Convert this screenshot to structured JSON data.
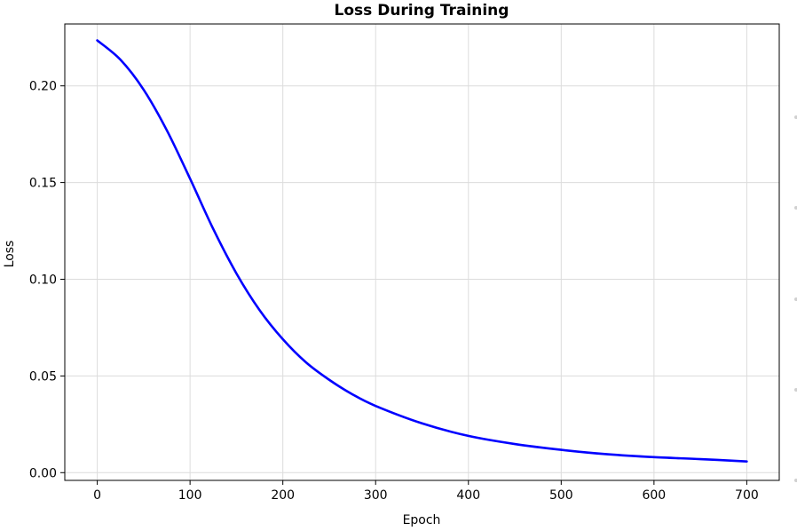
{
  "chart_data": {
    "type": "line",
    "title": "Loss During Training",
    "xlabel": "Epoch",
    "ylabel": "Loss",
    "xlim": [
      -35,
      735
    ],
    "ylim": [
      -0.004,
      0.232
    ],
    "xticks": [
      0,
      100,
      200,
      300,
      400,
      500,
      600,
      700
    ],
    "yticks": [
      0.0,
      0.05,
      0.1,
      0.15,
      0.2
    ],
    "xtick_labels": [
      "0",
      "100",
      "200",
      "300",
      "400",
      "500",
      "600",
      "700"
    ],
    "ytick_labels": [
      "0.00",
      "0.05",
      "0.10",
      "0.15",
      "0.20"
    ],
    "grid": true,
    "series": [
      {
        "color": "#0000ff",
        "x": [
          0,
          25,
          50,
          75,
          100,
          125,
          150,
          175,
          200,
          225,
          250,
          275,
          300,
          350,
          400,
          450,
          500,
          550,
          600,
          650,
          700
        ],
        "y": [
          0.2235,
          0.2135,
          0.198,
          0.177,
          0.152,
          0.126,
          0.103,
          0.084,
          0.069,
          0.057,
          0.048,
          0.0405,
          0.0345,
          0.0255,
          0.019,
          0.0148,
          0.0118,
          0.0095,
          0.008,
          0.007,
          0.0058
        ]
      }
    ]
  }
}
